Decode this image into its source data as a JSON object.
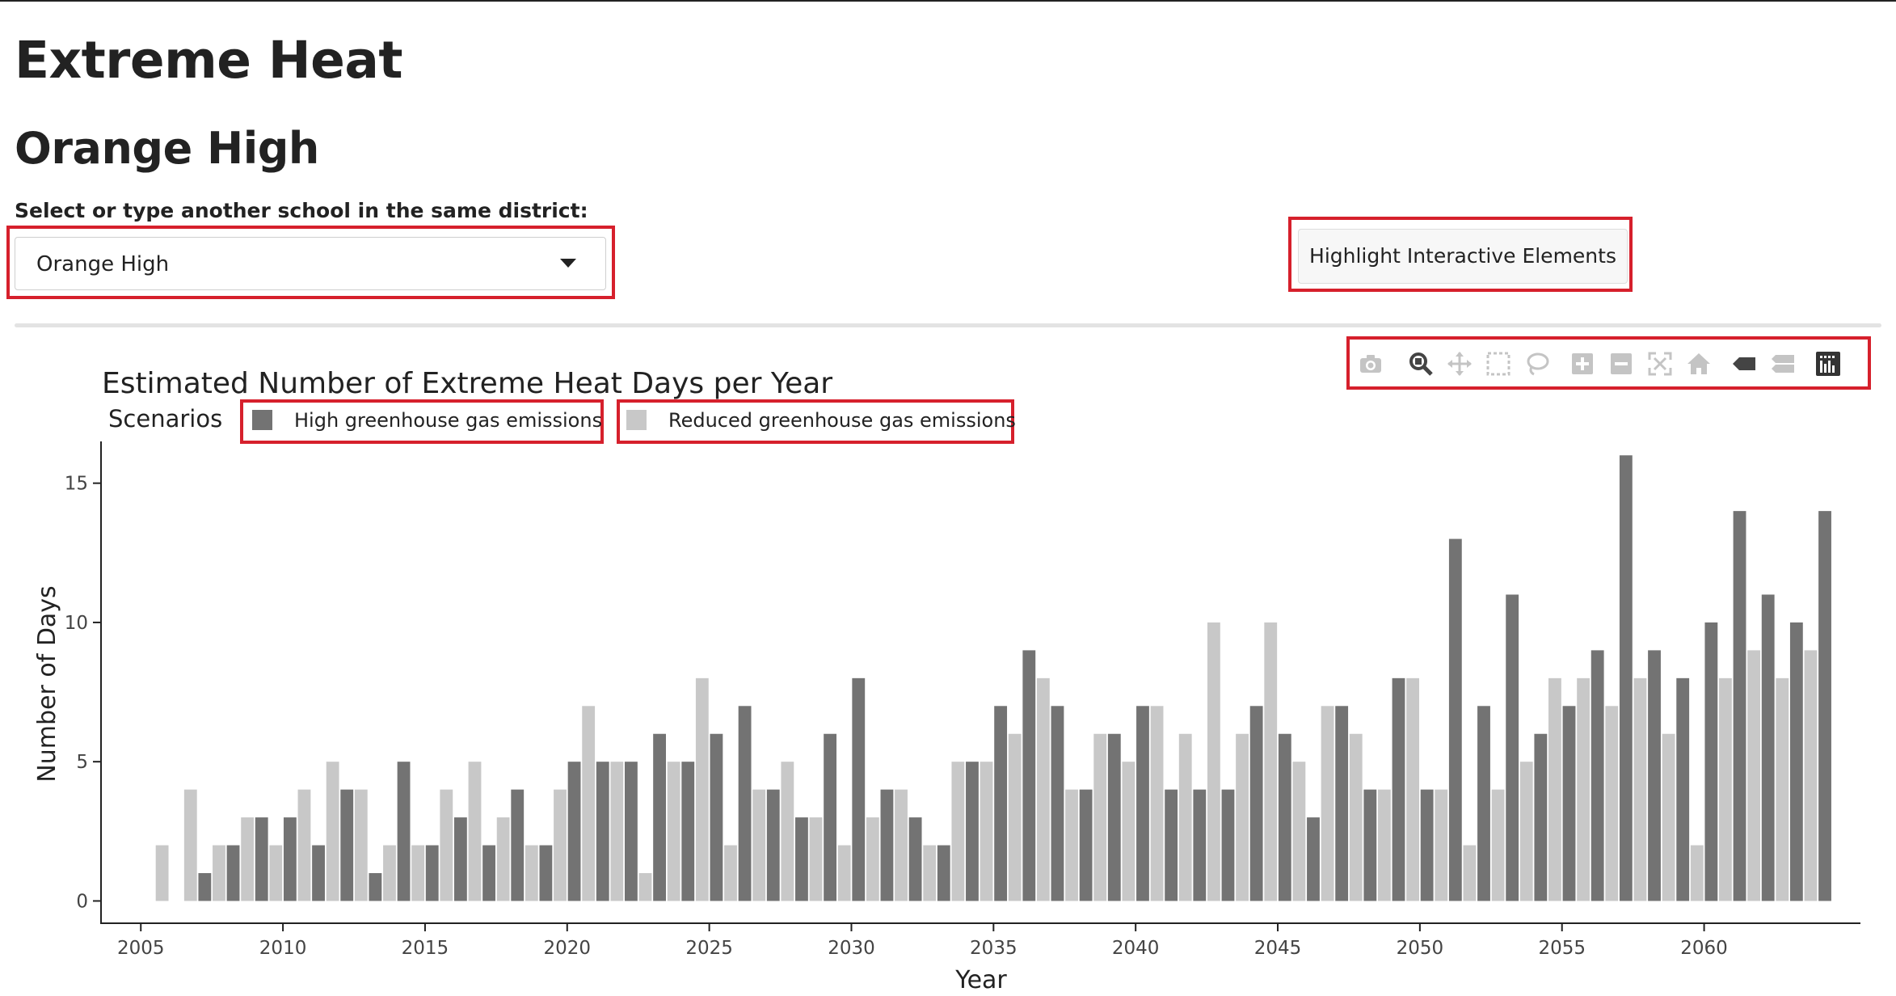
{
  "page": {
    "title": "Extreme Heat",
    "subtitle": "Orange High"
  },
  "school_select": {
    "label": "Select or type another school in the same district:",
    "value": "Orange High"
  },
  "highlight_button": {
    "label": "Highlight Interactive Elements"
  },
  "modebar": {
    "icons": [
      "camera-icon",
      "zoom-icon",
      "pan-icon",
      "box-select-icon",
      "lasso-select-icon",
      "zoom-in-icon",
      "zoom-out-icon",
      "autoscale-icon",
      "reset-axes-icon",
      "hover-closest-icon",
      "hover-compare-icon",
      "plotly-logo-icon"
    ],
    "active": "zoom-icon"
  },
  "colors": {
    "highlight": "#d6202c",
    "high_series": "#737373",
    "reduced_series": "#c8c8c8"
  },
  "chart_data": {
    "type": "bar",
    "title": "Estimated Number of Extreme Heat Days per Year",
    "xlabel": "Year",
    "ylabel": "Number of Days",
    "legend_title": "Scenarios",
    "legend_placement": "top-left",
    "xlim": [
      2003.6,
      2065.5
    ],
    "ylim": [
      -0.8,
      16.5
    ],
    "x_ticks": [
      2005,
      2010,
      2015,
      2020,
      2025,
      2030,
      2035,
      2040,
      2045,
      2050,
      2055,
      2060
    ],
    "y_ticks": [
      0,
      5,
      10,
      15
    ],
    "grid": false,
    "x": [
      2006,
      2007,
      2008,
      2009,
      2010,
      2011,
      2012,
      2013,
      2014,
      2015,
      2016,
      2017,
      2018,
      2019,
      2020,
      2021,
      2022,
      2023,
      2024,
      2025,
      2026,
      2027,
      2028,
      2029,
      2030,
      2031,
      2032,
      2033,
      2034,
      2035,
      2036,
      2037,
      2038,
      2039,
      2040,
      2041,
      2042,
      2043,
      2044,
      2045,
      2046,
      2047,
      2048,
      2049,
      2050,
      2051,
      2052,
      2053,
      2054,
      2055,
      2056,
      2057,
      2058,
      2059,
      2060,
      2061,
      2062,
      2063,
      2064
    ],
    "series": [
      {
        "name": "High greenhouse gas emissions",
        "values": [
          0,
          1,
          2,
          3,
          3,
          2,
          4,
          1,
          5,
          2,
          3,
          2,
          4,
          2,
          5,
          5,
          5,
          6,
          5,
          6,
          7,
          4,
          3,
          6,
          8,
          4,
          3,
          2,
          5,
          7,
          9,
          7,
          4,
          6,
          7,
          4,
          4,
          4,
          7,
          6,
          3,
          7,
          4,
          8,
          4,
          13,
          7,
          11,
          6,
          7,
          9,
          16,
          9,
          8,
          10,
          14,
          11,
          10,
          14
        ]
      },
      {
        "name": "Reduced greenhouse gas emissions",
        "values": [
          2,
          4,
          2,
          3,
          2,
          4,
          5,
          4,
          2,
          2,
          4,
          5,
          3,
          2,
          4,
          7,
          5,
          1,
          5,
          8,
          2,
          4,
          5,
          3,
          2,
          3,
          4,
          2,
          5,
          5,
          6,
          8,
          4,
          6,
          5,
          7,
          6,
          10,
          6,
          10,
          5,
          7,
          6,
          4,
          8,
          4,
          2,
          4,
          5,
          8,
          8,
          7,
          8,
          6,
          2,
          8,
          9,
          8,
          9
        ]
      }
    ]
  }
}
